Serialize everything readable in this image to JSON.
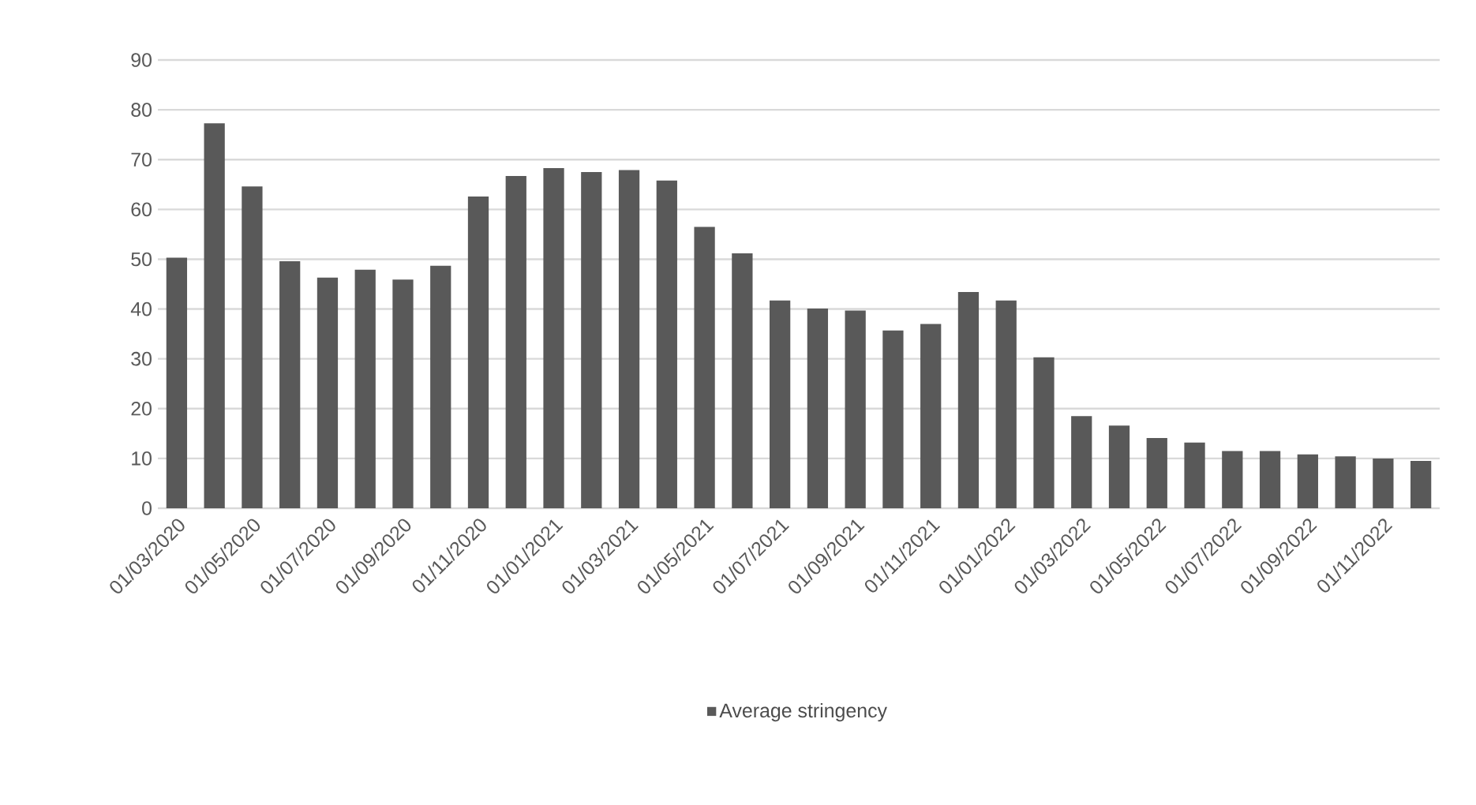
{
  "chart_data": {
    "type": "bar",
    "categories": [
      "01/03/2020",
      null,
      "01/05/2020",
      null,
      "01/07/2020",
      null,
      "01/09/2020",
      null,
      "01/11/2020",
      null,
      "01/01/2021",
      null,
      "01/03/2021",
      null,
      "01/05/2021",
      null,
      "01/07/2021",
      null,
      "01/09/2021",
      null,
      "01/11/2021",
      null,
      "01/01/2022",
      null,
      "01/03/2022",
      null,
      "01/05/2022",
      null,
      "01/07/2022",
      null,
      "01/09/2022",
      null,
      "01/11/2022",
      null
    ],
    "series": [
      {
        "name": "Average stringency",
        "color": "#595959",
        "values": [
          50.3,
          77.3,
          64.6,
          49.6,
          46.3,
          47.9,
          45.9,
          48.7,
          62.6,
          66.7,
          68.3,
          67.5,
          67.9,
          65.8,
          56.5,
          51.2,
          41.7,
          40.1,
          39.7,
          35.7,
          37.0,
          43.4,
          41.7,
          30.3,
          18.5,
          16.6,
          14.1,
          13.2,
          11.5,
          11.5,
          10.8,
          10.4,
          10.0,
          9.5
        ]
      }
    ],
    "ylim": [
      0,
      90
    ],
    "yticks": [
      0,
      10,
      20,
      30,
      40,
      50,
      60,
      70,
      80,
      90
    ],
    "grid": "y",
    "legend": "bottom"
  }
}
